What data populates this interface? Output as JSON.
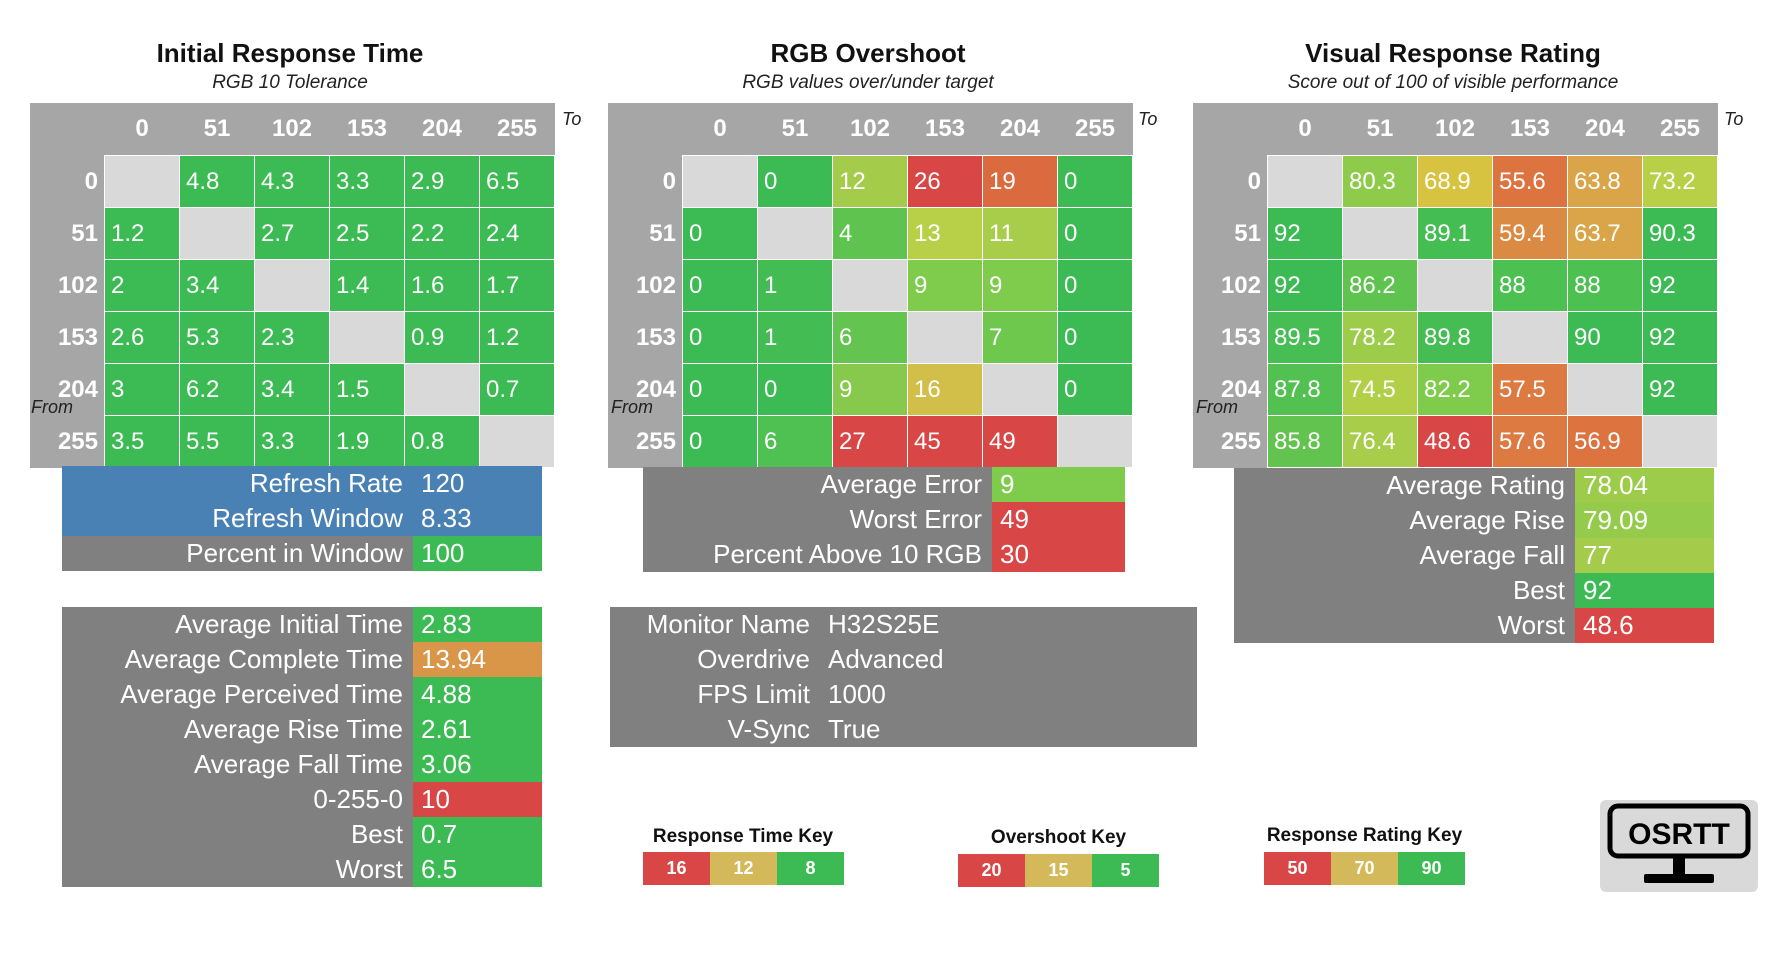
{
  "panels": {
    "initial": {
      "title": "Initial Response Time",
      "subtitle": "RGB 10 Tolerance",
      "to": "To",
      "from": "From",
      "cols": [
        "0",
        "51",
        "102",
        "153",
        "204",
        "255"
      ],
      "rows": [
        {
          "h": "0",
          "c": [
            "",
            "4.8",
            "4.3",
            "3.3",
            "2.9",
            "6.5"
          ]
        },
        {
          "h": "51",
          "c": [
            "1.2",
            "",
            "2.7",
            "2.5",
            "2.2",
            "2.4"
          ]
        },
        {
          "h": "102",
          "c": [
            "2",
            "3.4",
            "",
            "1.4",
            "1.6",
            "1.7"
          ]
        },
        {
          "h": "153",
          "c": [
            "2.6",
            "5.3",
            "2.3",
            "",
            "0.9",
            "1.2"
          ]
        },
        {
          "h": "204",
          "c": [
            "3",
            "6.2",
            "3.4",
            "1.5",
            "",
            "0.7"
          ]
        },
        {
          "h": "255",
          "c": [
            "3.5",
            "5.5",
            "3.3",
            "1.9",
            "0.8",
            ""
          ]
        }
      ],
      "colors": [
        [
          "",
          "#3cba54",
          "#3cba54",
          "#3cba54",
          "#3cba54",
          "#3cba54"
        ],
        [
          "#3cba54",
          "",
          "#3cba54",
          "#3cba54",
          "#3cba54",
          "#3cba54"
        ],
        [
          "#3cba54",
          "#3cba54",
          "",
          "#3cba54",
          "#3cba54",
          "#3cba54"
        ],
        [
          "#3cba54",
          "#3cba54",
          "#3cba54",
          "",
          "#3cba54",
          "#3cba54"
        ],
        [
          "#3cba54",
          "#3cba54",
          "#3cba54",
          "#3cba54",
          "",
          "#3cba54"
        ],
        [
          "#3cba54",
          "#3cba54",
          "#3cba54",
          "#3cba54",
          "#3cba54",
          ""
        ]
      ]
    },
    "overshoot": {
      "title": "RGB Overshoot",
      "subtitle": "RGB values over/under target",
      "to": "To",
      "from": "From",
      "cols": [
        "0",
        "51",
        "102",
        "153",
        "204",
        "255"
      ],
      "rows": [
        {
          "h": "0",
          "c": [
            "",
            "0",
            "12",
            "26",
            "19",
            "0"
          ]
        },
        {
          "h": "51",
          "c": [
            "0",
            "",
            "4",
            "13",
            "11",
            "0"
          ]
        },
        {
          "h": "102",
          "c": [
            "0",
            "1",
            "",
            "9",
            "9",
            "0"
          ]
        },
        {
          "h": "153",
          "c": [
            "0",
            "1",
            "6",
            "",
            "7",
            "0"
          ]
        },
        {
          "h": "204",
          "c": [
            "0",
            "0",
            "9",
            "16",
            "",
            "0"
          ]
        },
        {
          "h": "255",
          "c": [
            "0",
            "6",
            "27",
            "45",
            "49",
            ""
          ]
        }
      ],
      "colors": [
        [
          "",
          "#3cba54",
          "#a4cc4a",
          "#d94646",
          "#db6a3e",
          "#3cba54"
        ],
        [
          "#3cba54",
          "",
          "#5ec44f",
          "#b8cf48",
          "#a8cd4a",
          "#3cba54"
        ],
        [
          "#3cba54",
          "#42bc53",
          "",
          "#7fcb4c",
          "#7fcb4c",
          "#3cba54"
        ],
        [
          "#3cba54",
          "#42bc53",
          "#63c54f",
          "",
          "#6fc84e",
          "#3cba54"
        ],
        [
          "#3cba54",
          "#3cba54",
          "#86c94c",
          "#d2bf4a",
          "",
          "#3cba54"
        ],
        [
          "#3cba54",
          "#4ec152",
          "#d94646",
          "#d94646",
          "#d94646",
          ""
        ]
      ]
    },
    "visual": {
      "title": "Visual Response Rating",
      "subtitle": "Score out of 100 of visible performance",
      "to": "To",
      "from": "From",
      "cols": [
        "0",
        "51",
        "102",
        "153",
        "204",
        "255"
      ],
      "rows": [
        {
          "h": "0",
          "c": [
            "",
            "80.3",
            "68.9",
            "55.6",
            "63.8",
            "73.2"
          ]
        },
        {
          "h": "51",
          "c": [
            "92",
            "",
            "89.1",
            "59.4",
            "63.7",
            "90.3"
          ]
        },
        {
          "h": "102",
          "c": [
            "92",
            "86.2",
            "",
            "88",
            "88",
            "92"
          ]
        },
        {
          "h": "153",
          "c": [
            "89.5",
            "78.2",
            "89.8",
            "",
            "90",
            "92"
          ]
        },
        {
          "h": "204",
          "c": [
            "87.8",
            "74.5",
            "82.2",
            "57.5",
            "",
            "92"
          ]
        },
        {
          "h": "255",
          "c": [
            "85.8",
            "76.4",
            "48.6",
            "57.6",
            "56.9",
            ""
          ]
        }
      ],
      "colors": [
        [
          "",
          "#8fcb4b",
          "#d8c341",
          "#dd7440",
          "#d9a548",
          "#b8cf48"
        ],
        [
          "#3cba54",
          "",
          "#44bd53",
          "#db8a43",
          "#d9a548",
          "#3cba54"
        ],
        [
          "#3cba54",
          "#5ec44f",
          "",
          "#4dc052",
          "#4dc052",
          "#3cba54"
        ],
        [
          "#47be53",
          "#9ccc4a",
          "#45bd53",
          "",
          "#3cba54",
          "#3cba54"
        ],
        [
          "#52c151",
          "#b2cf48",
          "#7fcb4c",
          "#dd7a42",
          "",
          "#3cba54"
        ],
        [
          "#62c44f",
          "#a8cd4a",
          "#d94646",
          "#dd7a42",
          "#dd7440",
          ""
        ]
      ]
    }
  },
  "refresh": [
    {
      "k": "Refresh Rate",
      "v": "120",
      "kbg": "#4a81b4",
      "vbg": "#4a81b4"
    },
    {
      "k": "Refresh Window",
      "v": "8.33",
      "kbg": "#4a81b4",
      "vbg": "#4a81b4"
    },
    {
      "k": "Percent in Window",
      "v": "100",
      "kbg": "#808080",
      "vbg": "#3cba54"
    }
  ],
  "averages": [
    {
      "k": "Average Initial Time",
      "v": "2.83",
      "vbg": "#3cba54"
    },
    {
      "k": "Average Complete Time",
      "v": "13.94",
      "vbg": "#d99548"
    },
    {
      "k": "Average Perceived Time",
      "v": "4.88",
      "vbg": "#3cba54"
    },
    {
      "k": "Average Rise Time",
      "v": "2.61",
      "vbg": "#3cba54"
    },
    {
      "k": "Average Fall Time",
      "v": "3.06",
      "vbg": "#3cba54"
    },
    {
      "k": "0-255-0",
      "v": "10",
      "vbg": "#d94646"
    },
    {
      "k": "Best",
      "v": "0.7",
      "vbg": "#3cba54"
    },
    {
      "k": "Worst",
      "v": "6.5",
      "vbg": "#3cba54"
    }
  ],
  "errors": [
    {
      "k": "Average Error",
      "v": "9",
      "vbg": "#7fcb4c"
    },
    {
      "k": "Worst Error",
      "v": "49",
      "vbg": "#d94646"
    },
    {
      "k": "Percent Above 10 RGB",
      "v": "30",
      "vbg": "#d94646"
    }
  ],
  "monitor": [
    {
      "k": "Monitor Name",
      "v": "H32S25E"
    },
    {
      "k": "Overdrive",
      "v": "Advanced"
    },
    {
      "k": "FPS Limit",
      "v": "1000"
    },
    {
      "k": "V-Sync",
      "v": "True"
    }
  ],
  "ratings": [
    {
      "k": "Average Rating",
      "v": "78.04",
      "vbg": "#9ccc4a"
    },
    {
      "k": "Average Rise",
      "v": "79.09",
      "vbg": "#94cb4b"
    },
    {
      "k": "Average Fall",
      "v": "77",
      "vbg": "#a4cc4a"
    },
    {
      "k": "Best",
      "v": "92",
      "vbg": "#3cba54"
    },
    {
      "k": "Worst",
      "v": "48.6",
      "vbg": "#d94646"
    }
  ],
  "keys": {
    "response": {
      "title": "Response Time Key",
      "items": [
        {
          "l": "16",
          "c": "#d94646"
        },
        {
          "l": "12",
          "c": "#d4b95a"
        },
        {
          "l": "8",
          "c": "#3cba54"
        }
      ]
    },
    "overshoot": {
      "title": "Overshoot Key",
      "items": [
        {
          "l": "20",
          "c": "#d94646"
        },
        {
          "l": "15",
          "c": "#d4b95a"
        },
        {
          "l": "5",
          "c": "#3cba54"
        }
      ]
    },
    "rating": {
      "title": "Response Rating Key",
      "items": [
        {
          "l": "50",
          "c": "#d94646"
        },
        {
          "l": "70",
          "c": "#d4b95a"
        },
        {
          "l": "90",
          "c": "#3cba54"
        }
      ]
    }
  },
  "logo": {
    "text": "OSRTT",
    "icon": "monitor-icon"
  }
}
